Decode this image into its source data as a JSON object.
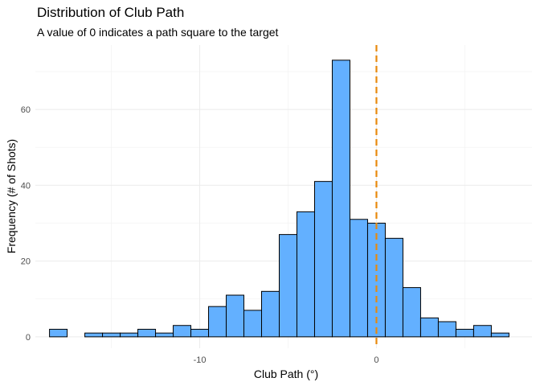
{
  "chart_data": {
    "type": "bar",
    "title": "Distribution of Club Path",
    "subtitle": "A value of 0 indicates a path square to the target",
    "xlabel": "Club Path (°)",
    "ylabel": "Frequency (# of Shots)",
    "bin_width": 1,
    "bin_centers": [
      -18,
      -17,
      -16,
      -15,
      -14,
      -13,
      -12,
      -11,
      -10,
      -9,
      -8,
      -7,
      -6,
      -5,
      -4,
      -3,
      -2,
      -1,
      0,
      1,
      2,
      3,
      4,
      5,
      6,
      7
    ],
    "values": [
      2,
      0,
      1,
      1,
      1,
      2,
      1,
      3,
      2,
      8,
      11,
      7,
      12,
      27,
      33,
      41,
      73,
      31,
      30,
      26,
      13,
      5,
      4,
      2,
      3,
      1
    ],
    "xlim": [
      -19.3,
      8.8
    ],
    "ylim": [
      -3,
      77
    ],
    "x_ticks": [
      -10,
      0
    ],
    "x_minor_ticks": [
      -15,
      -5,
      5
    ],
    "y_ticks": [
      0,
      20,
      40,
      60
    ],
    "y_minor_ticks": [
      10,
      30,
      50,
      70
    ],
    "reference_line": {
      "x": 0,
      "style": "dashed",
      "color": "#e8890c"
    },
    "bar_color": "#63b0ff",
    "bar_outline": "#000000",
    "grid": true,
    "legend": "none"
  }
}
